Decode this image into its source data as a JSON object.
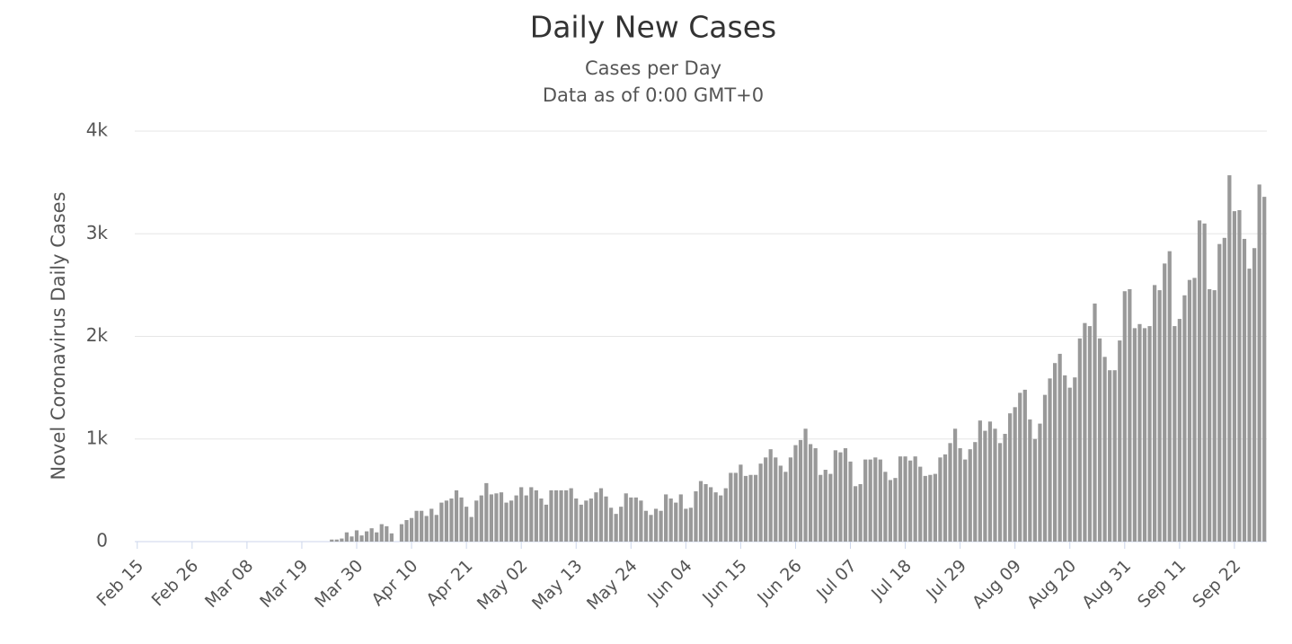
{
  "chart_data": {
    "type": "bar",
    "title": "Daily New Cases",
    "subtitle": [
      "Cases per Day",
      "Data as of 0:00 GMT+0"
    ],
    "y_label": "Novel Coronavirus Daily Cases",
    "categories": [
      "Feb 15",
      null,
      null,
      null,
      null,
      null,
      null,
      null,
      null,
      null,
      null,
      "Feb 26",
      null,
      null,
      null,
      null,
      null,
      null,
      null,
      null,
      null,
      null,
      "Mar 08",
      null,
      null,
      null,
      null,
      null,
      null,
      null,
      null,
      null,
      null,
      "Mar 19",
      null,
      null,
      null,
      null,
      null,
      null,
      null,
      null,
      null,
      null,
      "Mar 30",
      null,
      null,
      null,
      null,
      null,
      null,
      null,
      null,
      null,
      null,
      "Apr 10",
      null,
      null,
      null,
      null,
      null,
      null,
      null,
      null,
      null,
      null,
      "Apr 21",
      null,
      null,
      null,
      null,
      null,
      null,
      null,
      null,
      null,
      null,
      "May 02",
      null,
      null,
      null,
      null,
      null,
      null,
      null,
      null,
      null,
      null,
      "May 13",
      null,
      null,
      null,
      null,
      null,
      null,
      null,
      null,
      null,
      null,
      "May 24",
      null,
      null,
      null,
      null,
      null,
      null,
      null,
      null,
      null,
      null,
      "Jun 04",
      null,
      null,
      null,
      null,
      null,
      null,
      null,
      null,
      null,
      null,
      "Jun 15",
      null,
      null,
      null,
      null,
      null,
      null,
      null,
      null,
      null,
      null,
      "Jun 26",
      null,
      null,
      null,
      null,
      null,
      null,
      null,
      null,
      null,
      null,
      "Jul 07",
      null,
      null,
      null,
      null,
      null,
      null,
      null,
      null,
      null,
      null,
      "Jul 18",
      null,
      null,
      null,
      null,
      null,
      null,
      null,
      null,
      null,
      null,
      "Jul 29",
      null,
      null,
      null,
      null,
      null,
      null,
      null,
      null,
      null,
      null,
      "Aug 09",
      null,
      null,
      null,
      null,
      null,
      null,
      null,
      null,
      null,
      null,
      "Aug 20",
      null,
      null,
      null,
      null,
      null,
      null,
      null,
      null,
      null,
      null,
      "Aug 31",
      null,
      null,
      null,
      null,
      null,
      null,
      null,
      null,
      null,
      null,
      "Sep 11",
      null,
      null,
      null,
      null,
      null,
      null,
      null,
      null,
      null,
      null,
      "Sep 22",
      null,
      null,
      null,
      null,
      null,
      null
    ],
    "values": [
      0,
      0,
      0,
      0,
      0,
      0,
      0,
      0,
      0,
      0,
      0,
      0,
      0,
      0,
      0,
      0,
      0,
      0,
      0,
      0,
      0,
      0,
      0,
      0,
      0,
      0,
      0,
      0,
      0,
      0,
      0,
      0,
      0,
      0,
      0,
      0,
      0,
      0,
      0,
      20,
      20,
      30,
      90,
      50,
      110,
      60,
      100,
      130,
      90,
      170,
      150,
      80,
      0,
      170,
      210,
      230,
      300,
      300,
      250,
      320,
      260,
      380,
      400,
      420,
      500,
      430,
      340,
      240,
      400,
      450,
      570,
      460,
      470,
      480,
      380,
      400,
      450,
      530,
      450,
      530,
      500,
      420,
      360,
      500,
      500,
      500,
      500,
      520,
      420,
      360,
      400,
      420,
      480,
      520,
      440,
      330,
      270,
      340,
      470,
      430,
      430,
      400,
      300,
      260,
      320,
      300,
      460,
      420,
      380,
      460,
      320,
      330,
      490,
      590,
      560,
      530,
      480,
      450,
      520,
      670,
      670,
      750,
      640,
      650,
      650,
      760,
      820,
      900,
      820,
      740,
      680,
      820,
      940,
      990,
      1100,
      950,
      910,
      650,
      700,
      660,
      890,
      870,
      910,
      780,
      540,
      560,
      800,
      800,
      820,
      800,
      680,
      600,
      620,
      830,
      830,
      790,
      830,
      730,
      640,
      650,
      660,
      820,
      850,
      960,
      1100,
      910,
      800,
      900,
      970,
      1180,
      1080,
      1170,
      1100,
      960,
      1050,
      1250,
      1310,
      1450,
      1480,
      1190,
      1000,
      1150,
      1430,
      1590,
      1740,
      1830,
      1620,
      1500,
      1600,
      1980,
      2130,
      2100,
      2320,
      1980,
      1800,
      1670,
      1670,
      1960,
      2440,
      2460,
      2080,
      2120,
      2080,
      2100,
      2500,
      2450,
      2710,
      2830,
      2100,
      2170,
      2400,
      2550,
      2570,
      3130,
      3100,
      2460,
      2450,
      2900,
      2960,
      3570,
      3220,
      3230,
      2950,
      2660,
      2860,
      3480,
      3360
    ],
    "color": "#999999",
    "ylim": [
      0,
      4000
    ],
    "yticks": [
      0,
      {
        "value": 1000,
        "label": "1k"
      },
      {
        "value": 2000,
        "label": "2k"
      },
      {
        "value": 3000,
        "label": "3k"
      },
      {
        "value": 4000,
        "label": "4k"
      }
    ],
    "grid": true
  }
}
